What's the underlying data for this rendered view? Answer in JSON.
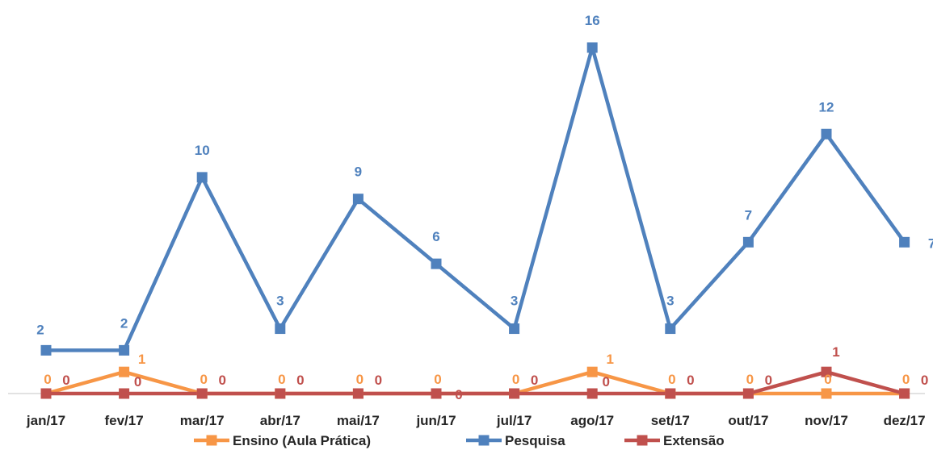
{
  "chart_data": {
    "type": "line",
    "title": "",
    "xlabel": "",
    "ylabel": "",
    "ylim": [
      0,
      16
    ],
    "grid": false,
    "legend": "bottom",
    "categories": [
      "jan/17",
      "fev/17",
      "mar/17",
      "abr/17",
      "mai/17",
      "jun/17",
      "jul/17",
      "ago/17",
      "set/17",
      "out/17",
      "nov/17",
      "dez/17"
    ],
    "series": [
      {
        "name": "Ensino (Aula Prática)",
        "color": "#F79646",
        "values": [
          0,
          1,
          0,
          0,
          0,
          0,
          0,
          1,
          0,
          0,
          0,
          0
        ]
      },
      {
        "name": "Pesquisa",
        "color": "#4F81BD",
        "values": [
          2,
          2,
          10,
          3,
          9,
          6,
          3,
          16,
          3,
          7,
          12,
          7
        ]
      },
      {
        "name": "Extensão",
        "color": "#C0504D",
        "values": [
          0,
          0,
          0,
          0,
          0,
          0,
          0,
          0,
          0,
          0,
          1,
          0
        ]
      }
    ]
  }
}
